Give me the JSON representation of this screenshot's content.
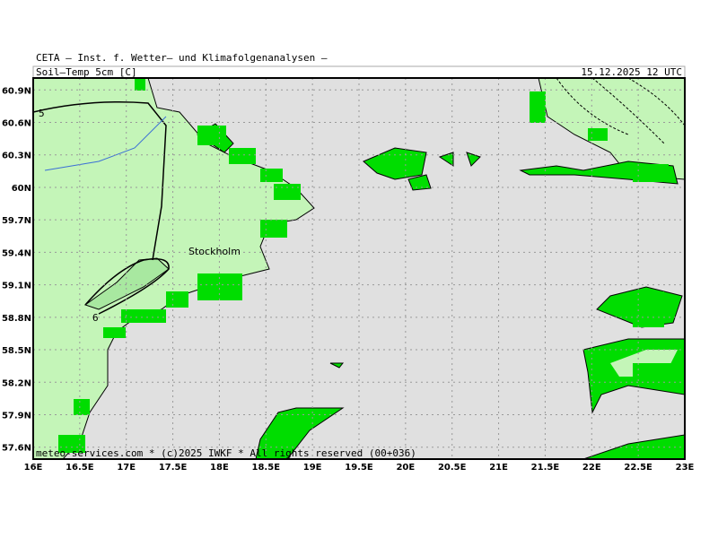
{
  "header": {
    "title": "CETA — Inst. f. Wetter— und Klimafolgenanalysen —",
    "variable": "Soil—Temp_5cm [C]",
    "date": "15.12.2025 12 UTC"
  },
  "map": {
    "xlim": [
      16,
      23
    ],
    "ylim": [
      57.49,
      61.01
    ],
    "xticks": [
      {
        "value": 16,
        "label": "16E"
      },
      {
        "value": 16.5,
        "label": "16.5E"
      },
      {
        "value": 17,
        "label": "17E"
      },
      {
        "value": 17.5,
        "label": "17.5E"
      },
      {
        "value": 18,
        "label": "18E"
      },
      {
        "value": 18.5,
        "label": "18.5E"
      },
      {
        "value": 19,
        "label": "19E"
      },
      {
        "value": 19.5,
        "label": "19.5E"
      },
      {
        "value": 20,
        "label": "20E"
      },
      {
        "value": 20.5,
        "label": "20.5E"
      },
      {
        "value": 21,
        "label": "21E"
      },
      {
        "value": 21.5,
        "label": "21.5E"
      },
      {
        "value": 22,
        "label": "22E"
      },
      {
        "value": 22.5,
        "label": "22.5E"
      },
      {
        "value": 23,
        "label": "23E"
      }
    ],
    "yticks": [
      {
        "value": 60.9,
        "label": "60.9N"
      },
      {
        "value": 60.6,
        "label": "60.6N"
      },
      {
        "value": 60.3,
        "label": "60.3N"
      },
      {
        "value": 60,
        "label": "60N"
      },
      {
        "value": 59.7,
        "label": "59.7N"
      },
      {
        "value": 59.4,
        "label": "59.4N"
      },
      {
        "value": 59.1,
        "label": "59.1N"
      },
      {
        "value": 58.8,
        "label": "58.8N"
      },
      {
        "value": 58.5,
        "label": "58.5N"
      },
      {
        "value": 58.2,
        "label": "58.2N"
      },
      {
        "value": 57.9,
        "label": "57.9N"
      },
      {
        "value": 57.6,
        "label": "57.6N"
      }
    ],
    "place": "Stockholm",
    "contour_labels": [
      "5",
      "6"
    ],
    "footer": "meteo-services.com * (c)2025 IWKF * All rights reserved (00+036)"
  }
}
